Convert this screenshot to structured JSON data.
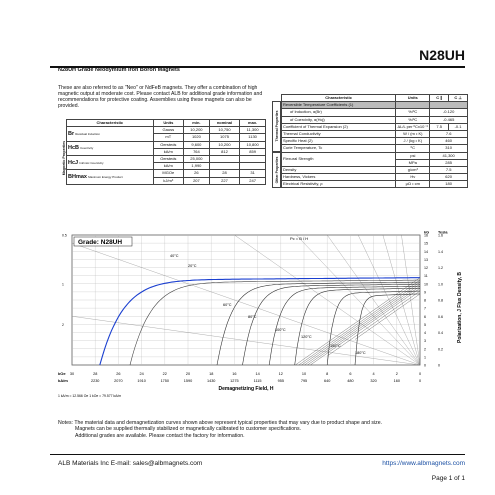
{
  "header": {
    "title": "N28UH"
  },
  "subtitle": "N28UH Grade Neodymium Iron Boron Magnets",
  "intro_text": "These are also referred to as \"Neo\" or NdFeB magnets.  They offer a combination of high magnetic output at moderate cost.  Please contact ALB for additional grade information and recommendations for protective coating.  Assemblies using these magnets can also be provided.",
  "magnetic_table": {
    "side_label": "Magnetic Properties",
    "headers": [
      "Characteristic",
      "Units",
      "min.",
      "nominal",
      "max."
    ],
    "rows": [
      {
        "sym": "Br",
        "desc": "Residual Induction",
        "units": [
          "Gauss",
          "mT"
        ],
        "min": [
          "10,200",
          "1020"
        ],
        "nom": [
          "10,750",
          "1075"
        ],
        "max": [
          "11,300",
          "1130"
        ]
      },
      {
        "sym": "HcB",
        "desc": "Coercivity",
        "units": [
          "Oersteds",
          "kA/m"
        ],
        "min": [
          "9,600",
          "764"
        ],
        "nom": [
          "10,200",
          "812"
        ],
        "max": [
          "10,800",
          "859"
        ]
      },
      {
        "sym": "HcJ",
        "desc": "Intrinsic Coercivity",
        "units": [
          "Oersteds",
          "kA/m"
        ],
        "min": [
          "25,000",
          "1,990"
        ],
        "nom": [
          "",
          ""
        ],
        "max": [
          "",
          ""
        ]
      },
      {
        "sym": "BHmax",
        "desc": "Maximum Energy Product",
        "units": [
          "MGOe",
          "kJ/m³"
        ],
        "min": [
          "26",
          "207"
        ],
        "nom": [
          "28",
          "227"
        ],
        "max": [
          "31",
          "247"
        ]
      }
    ]
  },
  "thermal_table": {
    "headers": [
      "Characteristic",
      "Units",
      "C ∥",
      "C ⊥"
    ],
    "thermal_label": "Thermal Properties",
    "other_label": "Other Properties",
    "rows": [
      {
        "name": "Reversible Temperature Coefficients (1)",
        "units": "",
        "v1": "",
        "v2": "",
        "span": true,
        "grey": true
      },
      {
        "name": "of Induction, α(Br)",
        "units": "%/ºC",
        "v1": "-0.120",
        "v2": "",
        "span": true,
        "indent": true
      },
      {
        "name": "of Coercivity, α(Hcj)",
        "units": "%/ºC",
        "v1": "-0.465",
        "v2": "",
        "span": true,
        "indent": true
      },
      {
        "name": "Coefficient of Thermal Expansion (2)",
        "units": "ΔL/L per ºCx10⁻⁶",
        "v1": "7.5",
        "v2": "-0.1"
      },
      {
        "name": "Thermal Conductivity",
        "units": "W / (m • K)",
        "v1": "7.6",
        "v2": "",
        "span": true
      },
      {
        "name": "Specific Heat (2)",
        "units": "J / (kg • K)",
        "v1": "460",
        "v2": "",
        "span": true
      },
      {
        "name": "Curie Temperature, Tc",
        "units": "ºC",
        "v1": "310",
        "v2": "",
        "span": true
      },
      {
        "name": "Flexural Strength",
        "units": [
          "psi",
          "MPa"
        ],
        "v1": [
          "41,300",
          "285"
        ],
        "v2": "",
        "span": true,
        "double": true
      },
      {
        "name": "Density",
        "units": "g/cm³",
        "v1": "7.5",
        "v2": "",
        "span": true
      },
      {
        "name": "Hardness, Vickers",
        "units": "Hv",
        "v1": "620",
        "v2": "",
        "span": true
      },
      {
        "name": "Electrical Resistivity, ρ",
        "units": "μΩ • cm",
        "v1": "180",
        "v2": "",
        "span": true
      }
    ],
    "notes_label": "Notes:",
    "note1": "(1) Coefficients measured between 20 and 150 ºC",
    "note2": "(2) Between 20 and 200 ºC"
  },
  "chart_data": {
    "type": "line",
    "title": "Grade: N28UH",
    "xlabel": "Demagnetizing Field, H",
    "ylabel_left": "Induction, B",
    "ylabel_right": "Polarization, J    Flux Density, B",
    "right_units": [
      "kG",
      "Tesla"
    ],
    "kOe_ticks": [
      "30",
      "28",
      "26",
      "24",
      "22",
      "20",
      "18",
      "16",
      "14",
      "12",
      "10",
      "8",
      "6",
      "4",
      "2",
      "0"
    ],
    "kAm_ticks": [
      "2230",
      "2070",
      "1910",
      "1750",
      "1590",
      "1430",
      "1275",
      "1115",
      "955",
      "795",
      "640",
      "480",
      "320",
      "160",
      "0"
    ],
    "kG_ticks": [
      "16",
      "15",
      "14",
      "13",
      "12",
      "11",
      "10",
      "9",
      "8",
      "7",
      "6",
      "5",
      "4",
      "3",
      "2",
      "1",
      "0"
    ],
    "tesla_ticks": [
      "1.6",
      "1.4",
      "1.2",
      "1.0",
      "0.8",
      "0.6",
      "0.4",
      "0.2",
      "0"
    ],
    "left_ticks": [
      "0.5",
      "1",
      "2"
    ],
    "x_unit_labels": [
      "kOe",
      "kA/m"
    ],
    "permeance_label": "Pc = B / H",
    "permeance_values": [
      "10",
      "5",
      "3",
      "2",
      "1.5",
      "1",
      "0.5",
      "0.2"
    ],
    "x_range_kOe": [
      30,
      0
    ],
    "y_range_kG": [
      0,
      16
    ],
    "temperatures": [
      "40°C",
      "20°C",
      "60°C",
      "80°C",
      "100°C",
      "120°C",
      "150°C",
      "180°C"
    ],
    "series": [
      {
        "name": "20°C",
        "Br_kG": 10.75,
        "HcJ_kOe": 27.6
      },
      {
        "name": "40°C",
        "Br_kG": 10.45,
        "HcJ_kOe": 25.0
      },
      {
        "name": "60°C",
        "Br_kG": 10.2,
        "HcJ_kOe": 17.5
      },
      {
        "name": "80°C",
        "Br_kG": 9.95,
        "HcJ_kOe": 15.3
      },
      {
        "name": "100°C",
        "Br_kG": 9.7,
        "HcJ_kOe": 13.0
      },
      {
        "name": "120°C",
        "Br_kG": 9.45,
        "HcJ_kOe": 10.8
      },
      {
        "name": "150°C",
        "Br_kG": 9.1,
        "HcJ_kOe": 8.0
      },
      {
        "name": "180°C",
        "Br_kG": 8.75,
        "HcJ_kOe": 5.6
      }
    ],
    "conversion_text": "1 kA/m = 12.566 Oe     1 kOe = 79.577 kA/m"
  },
  "bottom_notes": {
    "line1": "Notes: The material data and demagnetization curves shown above represent typical properties that may vary due to product shape and size.",
    "line2": "Magnets can be supplied thermally stabilized or magnetically calibrated to customer specifications.",
    "line3": "Additional grades are available.  Please contact the factory for information."
  },
  "footer": {
    "company": "ALB Materials Inc  E-mail:  sales@albmagnets.com",
    "website": "https://www.albmagnets.com",
    "page": "Page 1 of 1"
  }
}
